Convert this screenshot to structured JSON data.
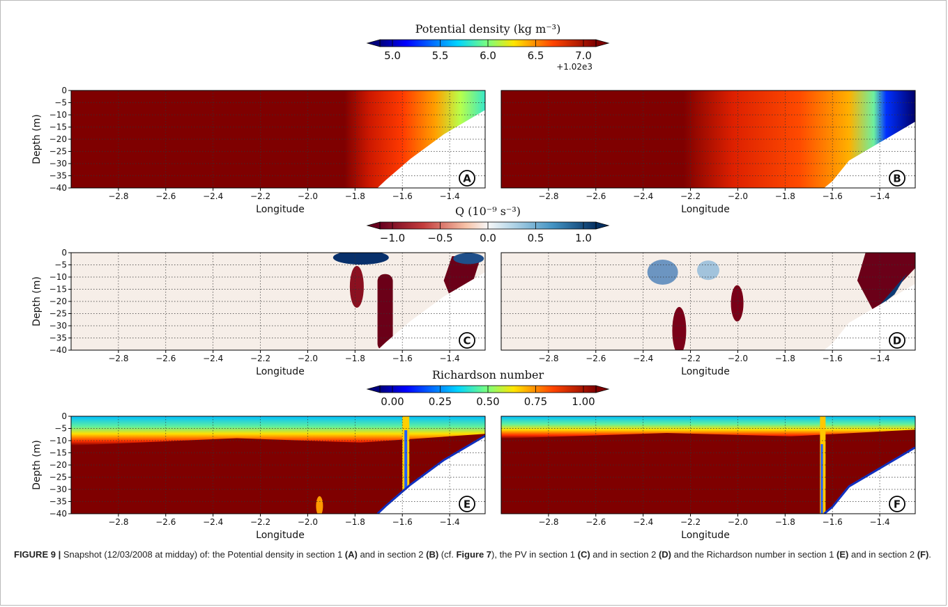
{
  "colors": {
    "frame": "#b9b9b9",
    "land": "#ffffff",
    "grid": "#333333",
    "caption_text": "#222222"
  },
  "chart_data": [
    {
      "type": "heatmap",
      "panel": "A",
      "xlabel": "Longitude",
      "ylabel": "Depth (m)",
      "x_ticks": [
        "-2.8",
        "-2.6",
        "-2.4",
        "-2.2",
        "-2.0",
        "-1.8",
        "-1.6",
        "-1.4"
      ],
      "y_ticks": [
        "0",
        "-5",
        "-10",
        "-15",
        "-20",
        "-25",
        "-30",
        "-35",
        "-40"
      ],
      "xlim": [
        -3.0,
        -1.25
      ],
      "ylim": [
        -40,
        0
      ],
      "grid": true,
      "field": "Potential density",
      "colorbar": {
        "label": "Potential density (kg m⁻³)",
        "ticks": [
          "5.0",
          "5.5",
          "6.0",
          "6.5",
          "7.0"
        ],
        "offset": "+1.02e3",
        "range": [
          5.0,
          7.0
        ],
        "colormap": "jet"
      }
    },
    {
      "type": "heatmap",
      "panel": "B",
      "xlabel": "Longitude",
      "ylabel": "",
      "x_ticks": [
        "-2.8",
        "-2.6",
        "-2.4",
        "-2.2",
        "-2.0",
        "-1.8",
        "-1.6",
        "-1.4"
      ],
      "xlim": [
        -3.0,
        -1.25
      ],
      "ylim": [
        -40,
        0
      ],
      "grid": true,
      "field": "Potential density"
    },
    {
      "type": "heatmap",
      "panel": "C",
      "xlabel": "Longitude",
      "ylabel": "Depth (m)",
      "x_ticks": [
        "-2.8",
        "-2.6",
        "-2.4",
        "-2.2",
        "-2.0",
        "-1.8",
        "-1.6",
        "-1.4"
      ],
      "y_ticks": [
        "0",
        "-5",
        "-10",
        "-15",
        "-20",
        "-25",
        "-30",
        "-35",
        "-40"
      ],
      "xlim": [
        -3.0,
        -1.25
      ],
      "ylim": [
        -40,
        0
      ],
      "grid": true,
      "field": "Q",
      "colorbar": {
        "label": "Q (10⁻⁹ s⁻³)",
        "ticks": [
          "−1.0",
          "−0.5",
          "0.0",
          "0.5",
          "1.0"
        ],
        "range": [
          -1.0,
          1.0
        ],
        "colormap": "RdBu_r"
      }
    },
    {
      "type": "heatmap",
      "panel": "D",
      "xlabel": "Longitude",
      "ylabel": "",
      "x_ticks": [
        "-2.8",
        "-2.6",
        "-2.4",
        "-2.2",
        "-2.0",
        "-1.8",
        "-1.6",
        "-1.4"
      ],
      "xlim": [
        -3.0,
        -1.25
      ],
      "ylim": [
        -40,
        0
      ],
      "grid": true,
      "field": "Q"
    },
    {
      "type": "heatmap",
      "panel": "E",
      "xlabel": "Longitude",
      "ylabel": "Depth (m)",
      "x_ticks": [
        "-2.8",
        "-2.6",
        "-2.4",
        "-2.2",
        "-2.0",
        "-1.8",
        "-1.6",
        "-1.4"
      ],
      "y_ticks": [
        "0",
        "-5",
        "-10",
        "-15",
        "-20",
        "-25",
        "-30",
        "-35",
        "-40"
      ],
      "xlim": [
        -3.0,
        -1.25
      ],
      "ylim": [
        -40,
        0
      ],
      "grid": true,
      "field": "Richardson number",
      "colorbar": {
        "label": "Richardson number",
        "ticks": [
          "0.00",
          "0.25",
          "0.50",
          "0.75",
          "1.00"
        ],
        "range": [
          0.0,
          1.0
        ],
        "colormap": "jet"
      }
    },
    {
      "type": "heatmap",
      "panel": "F",
      "xlabel": "Longitude",
      "ylabel": "",
      "x_ticks": [
        "-2.8",
        "-2.6",
        "-2.4",
        "-2.2",
        "-2.0",
        "-1.8",
        "-1.6",
        "-1.4"
      ],
      "xlim": [
        -3.0,
        -1.25
      ],
      "ylim": [
        -40,
        0
      ],
      "grid": true,
      "field": "Richardson number"
    }
  ],
  "caption": {
    "figure_label": "FIGURE 9 |",
    "parts": [
      {
        "t": " Snapshot (12/03/2008 at midday) of: the Potential density in section 1 ",
        "b": false
      },
      {
        "t": "(A)",
        "b": true
      },
      {
        "t": " and in section 2 ",
        "b": false
      },
      {
        "t": "(B)",
        "b": true
      },
      {
        "t": " (cf. ",
        "b": false
      },
      {
        "t": "Figure 7",
        "b": true
      },
      {
        "t": "), the PV in section 1 ",
        "b": false
      },
      {
        "t": "(C)",
        "b": true
      },
      {
        "t": " and in section 2 ",
        "b": false
      },
      {
        "t": "(D)",
        "b": true
      },
      {
        "t": " and the Richardson number in section 1 ",
        "b": false
      },
      {
        "t": "(E)",
        "b": true
      },
      {
        "t": " and in section 2 ",
        "b": false
      },
      {
        "t": "(F)",
        "b": true
      },
      {
        "t": ".",
        "b": false
      }
    ]
  }
}
